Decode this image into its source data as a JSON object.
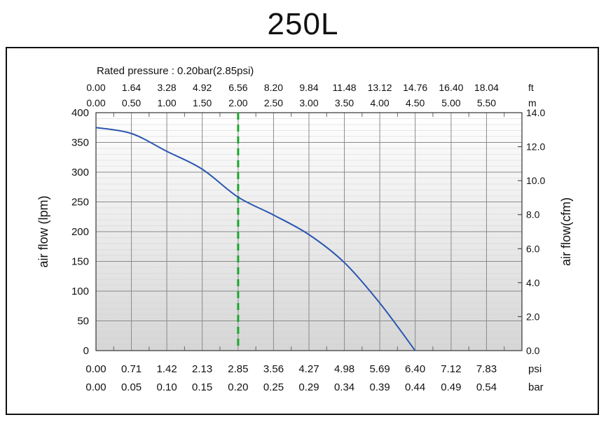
{
  "chart_data": {
    "type": "line",
    "title": "250L",
    "subtitle": "Rated pressure : 0.20bar(2.85psi)",
    "ylabel_left": "air flow (lpm)",
    "ylabel_right": "air flow(cfm)",
    "y_left_ticks": [
      "0",
      "50",
      "100",
      "150",
      "200",
      "250",
      "300",
      "350",
      "400"
    ],
    "y_right_ticks": [
      "0.0",
      "2.0",
      "4.0",
      "6.0",
      "8.0",
      "10.0",
      "12.0",
      "14.0"
    ],
    "ylim": [
      0,
      400
    ],
    "y_right_lim": [
      0,
      14
    ],
    "x_psi_ticks": [
      "0.00",
      "0.71",
      "1.42",
      "2.13",
      "2.85",
      "3.56",
      "4.27",
      "4.98",
      "5.69",
      "6.40",
      "7.12",
      "7.83"
    ],
    "x_psi_unit": "psi",
    "x_bar_ticks": [
      "0.00",
      "0.05",
      "0.10",
      "0.15",
      "0.20",
      "0.25",
      "0.29",
      "0.34",
      "0.39",
      "0.44",
      "0.49",
      "0.54"
    ],
    "x_bar_unit": "bar",
    "x_ft_ticks": [
      "0.00",
      "1.64",
      "3.28",
      "4.92",
      "6.56",
      "8.20",
      "9.84",
      "11.48",
      "13.12",
      "14.76",
      "16.40",
      "18.04"
    ],
    "x_ft_unit": "ft",
    "x_m_ticks": [
      "0.00",
      "0.50",
      "1.00",
      "1.50",
      "2.00",
      "2.50",
      "3.00",
      "3.50",
      "4.00",
      "4.50",
      "5.00",
      "5.50"
    ],
    "x_m_unit": "m",
    "xlim_psi": [
      0,
      8.54
    ],
    "series": [
      {
        "color": "#2b57b0",
        "x": [
          0,
          0.71,
          1.42,
          2.13,
          2.85,
          3.56,
          4.27,
          4.98,
          5.69,
          6.4
        ],
        "y": [
          375,
          365,
          335,
          305,
          258,
          228,
          195,
          148,
          80,
          0
        ]
      }
    ],
    "rated_marker": {
      "x": 2.85,
      "color": "#1aa82e",
      "style": "dashed"
    },
    "grid": true
  }
}
